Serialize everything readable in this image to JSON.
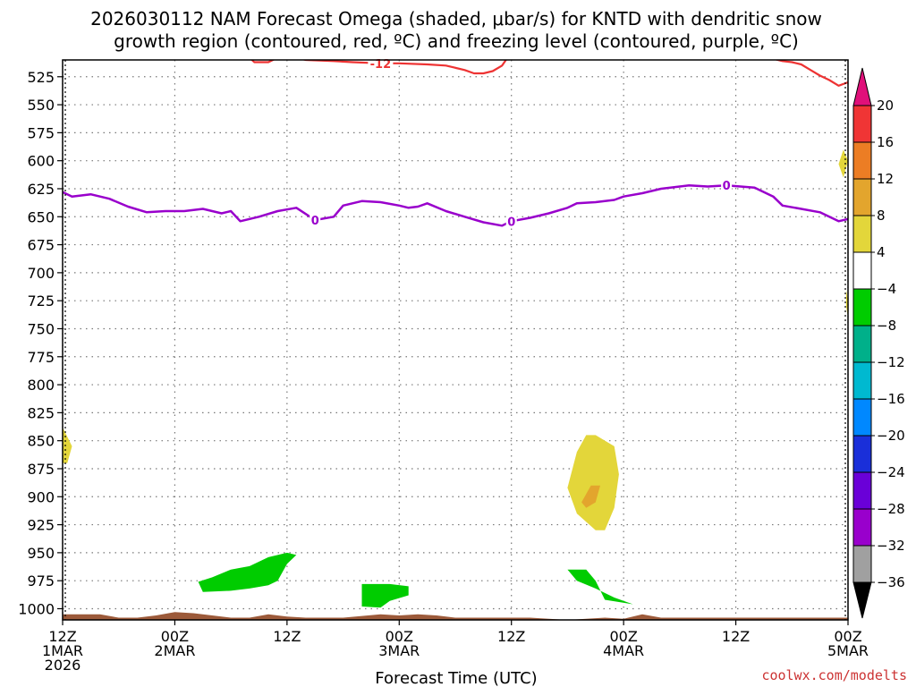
{
  "title_lines": [
    "2026030112 NAM Forecast Omega (shaded, μbar/s) for KNTD with dendritic snow",
    "growth region (contoured, red, ºC) and freezing level (contoured, purple, ºC)"
  ],
  "credit": "coolwx.com/modelts",
  "chart_data": {
    "type": "time-height",
    "title": "2026030112 NAM Forecast Omega (shaded, μbar/s) for KNTD with dendritic snow growth region (contoured, red, ºC) and freezing level (contoured, purple, ºC)",
    "xlabel": "Forecast Time (UTC)",
    "ylabel": "",
    "xlim": [
      0,
      84
    ],
    "ylim": [
      1010,
      510
    ],
    "y_ticks": [
      525,
      550,
      575,
      600,
      625,
      650,
      675,
      700,
      725,
      750,
      775,
      800,
      825,
      850,
      875,
      900,
      925,
      950,
      975,
      1000
    ],
    "x_ticks": [
      {
        "hour": 0,
        "lines": [
          "12Z",
          "1MAR",
          "2026"
        ]
      },
      {
        "hour": 12,
        "lines": [
          "00Z",
          "2MAR"
        ]
      },
      {
        "hour": 24,
        "lines": [
          "12Z"
        ]
      },
      {
        "hour": 36,
        "lines": [
          "00Z",
          "3MAR"
        ]
      },
      {
        "hour": 48,
        "lines": [
          "12Z"
        ]
      },
      {
        "hour": 60,
        "lines": [
          "00Z",
          "4MAR"
        ]
      },
      {
        "hour": 72,
        "lines": [
          "12Z"
        ]
      },
      {
        "hour": 84,
        "lines": [
          "00Z",
          "5MAR"
        ]
      }
    ],
    "freezing_level": {
      "label": "0",
      "color": "#9900cc",
      "label_hours": [
        27,
        48,
        71
      ],
      "points": [
        [
          0,
          628
        ],
        [
          1,
          632
        ],
        [
          3,
          630
        ],
        [
          5,
          634
        ],
        [
          7,
          641
        ],
        [
          9,
          646
        ],
        [
          11,
          645
        ],
        [
          13,
          645
        ],
        [
          15,
          643
        ],
        [
          17,
          647
        ],
        [
          18,
          645
        ],
        [
          19,
          654
        ],
        [
          21,
          650
        ],
        [
          23,
          645
        ],
        [
          25,
          642
        ],
        [
          27,
          653
        ],
        [
          29,
          650
        ],
        [
          30,
          640
        ],
        [
          32,
          636
        ],
        [
          34,
          637
        ],
        [
          36,
          640
        ],
        [
          37,
          642
        ],
        [
          38,
          641
        ],
        [
          39,
          638
        ],
        [
          41,
          645
        ],
        [
          43,
          650
        ],
        [
          45,
          655
        ],
        [
          47,
          658
        ],
        [
          48,
          654
        ],
        [
          50,
          651
        ],
        [
          52,
          647
        ],
        [
          54,
          642
        ],
        [
          55,
          638
        ],
        [
          57,
          637
        ],
        [
          59,
          635
        ],
        [
          60,
          632
        ],
        [
          62,
          629
        ],
        [
          64,
          625
        ],
        [
          66,
          623
        ],
        [
          67,
          622
        ],
        [
          69,
          623
        ],
        [
          71,
          622
        ],
        [
          74,
          624
        ],
        [
          76,
          632
        ],
        [
          77,
          640
        ],
        [
          79,
          643
        ],
        [
          81,
          646
        ],
        [
          83,
          654
        ],
        [
          84,
          652
        ]
      ]
    },
    "dgz_contour": {
      "label": "-12",
      "color": "#ee3333",
      "label_hours": [
        34
      ],
      "segments": [
        [
          [
            20,
            508
          ],
          [
            20.5,
            512
          ],
          [
            22,
            512
          ],
          [
            23,
            508
          ]
        ],
        [
          [
            25,
            508
          ],
          [
            26,
            510
          ],
          [
            29,
            511
          ],
          [
            31,
            512
          ],
          [
            34,
            513
          ],
          [
            36,
            513
          ],
          [
            39,
            514
          ],
          [
            41,
            515
          ],
          [
            43,
            519
          ],
          [
            44,
            522
          ],
          [
            45,
            522
          ],
          [
            46,
            520
          ],
          [
            47,
            515
          ],
          [
            47.5,
            509
          ]
        ],
        [
          [
            76,
            509
          ],
          [
            77,
            511
          ],
          [
            78,
            512
          ],
          [
            79,
            514
          ],
          [
            80,
            519
          ],
          [
            81,
            524
          ],
          [
            82,
            528
          ],
          [
            83,
            533
          ],
          [
            84,
            530
          ]
        ]
      ]
    },
    "omega_levels": [
      -36,
      -32,
      -28,
      -24,
      -20,
      -16,
      -12,
      -8,
      -4,
      4,
      8,
      12,
      16,
      20
    ],
    "omega_colors": [
      "#000000",
      "#a0a0a0",
      "#9900cc",
      "#6a00d8",
      "#1a2fd9",
      "#0088ff",
      "#00b9d0",
      "#00b08a",
      "#00cc00",
      "#ffffff",
      "#e3d63a",
      "#e3a52d",
      "#ec7d24",
      "#f03535",
      "#e0107a"
    ],
    "omega_shaded_regions": [
      {
        "sign": "upward",
        "color": "#00cc00",
        "points": [
          [
            14.5,
            976
          ],
          [
            15,
            985
          ],
          [
            18,
            984
          ],
          [
            20,
            982
          ],
          [
            22,
            979
          ],
          [
            23,
            975
          ],
          [
            24,
            960
          ],
          [
            25,
            952
          ],
          [
            24,
            950
          ],
          [
            22,
            954
          ],
          [
            20,
            962
          ],
          [
            18,
            965
          ],
          [
            16,
            972
          ]
        ]
      },
      {
        "sign": "upward",
        "color": "#00cc00",
        "points": [
          [
            32,
            978
          ],
          [
            32,
            998
          ],
          [
            34,
            999
          ],
          [
            35,
            993
          ],
          [
            37,
            988
          ],
          [
            37,
            980
          ],
          [
            35,
            978
          ]
        ]
      },
      {
        "sign": "upward",
        "color": "#00cc00",
        "points": [
          [
            54,
            965
          ],
          [
            55,
            975
          ],
          [
            57,
            982
          ],
          [
            59,
            990
          ],
          [
            61,
            996
          ],
          [
            58,
            992
          ],
          [
            57,
            975
          ],
          [
            56,
            965
          ]
        ]
      },
      {
        "sign": "downward",
        "color": "#e3d63a",
        "points": [
          [
            0,
            838
          ],
          [
            1,
            855
          ],
          [
            0.5,
            870
          ],
          [
            0,
            870
          ]
        ]
      },
      {
        "sign": "downward",
        "color": "#e3d63a",
        "points": [
          [
            54,
            892
          ],
          [
            55,
            860
          ],
          [
            56,
            845
          ],
          [
            57,
            845
          ],
          [
            59,
            855
          ],
          [
            59.5,
            880
          ],
          [
            59,
            910
          ],
          [
            58,
            930
          ],
          [
            57,
            930
          ],
          [
            55,
            915
          ]
        ]
      },
      {
        "sign": "downward",
        "color": "#e3a52d",
        "points": [
          [
            55.5,
            905
          ],
          [
            56.5,
            890
          ],
          [
            57.5,
            890
          ],
          [
            57,
            905
          ],
          [
            56,
            910
          ]
        ]
      },
      {
        "sign": "downward",
        "color": "#e3d63a",
        "points": [
          [
            83.5,
            590
          ],
          [
            84,
            600
          ],
          [
            83.5,
            615
          ],
          [
            83,
            603
          ]
        ]
      },
      {
        "sign": "downward",
        "color": "#e3d63a",
        "points": [
          [
            83.8,
            715
          ],
          [
            84,
            725
          ],
          [
            84,
            740
          ],
          [
            83.8,
            730
          ]
        ]
      }
    ],
    "terrain": [
      [
        0,
        1005
      ],
      [
        4,
        1005
      ],
      [
        6,
        1008
      ],
      [
        8,
        1008
      ],
      [
        10,
        1006
      ],
      [
        12,
        1003
      ],
      [
        14,
        1004
      ],
      [
        16,
        1006
      ],
      [
        18,
        1008
      ],
      [
        20,
        1008
      ],
      [
        22,
        1005
      ],
      [
        24,
        1007
      ],
      [
        26,
        1008
      ],
      [
        30,
        1008
      ],
      [
        34,
        1005
      ],
      [
        36,
        1006
      ],
      [
        38,
        1005
      ],
      [
        40,
        1006
      ],
      [
        42,
        1008
      ],
      [
        50,
        1008
      ],
      [
        54,
        1010
      ],
      [
        56,
        1009
      ],
      [
        58,
        1008
      ],
      [
        60,
        1009
      ],
      [
        62,
        1005
      ],
      [
        64,
        1008
      ],
      [
        66,
        1008
      ],
      [
        72,
        1008
      ],
      [
        80,
        1008
      ],
      [
        84,
        1008
      ]
    ],
    "terrain_color": "#9c5a3a",
    "grid": true
  }
}
